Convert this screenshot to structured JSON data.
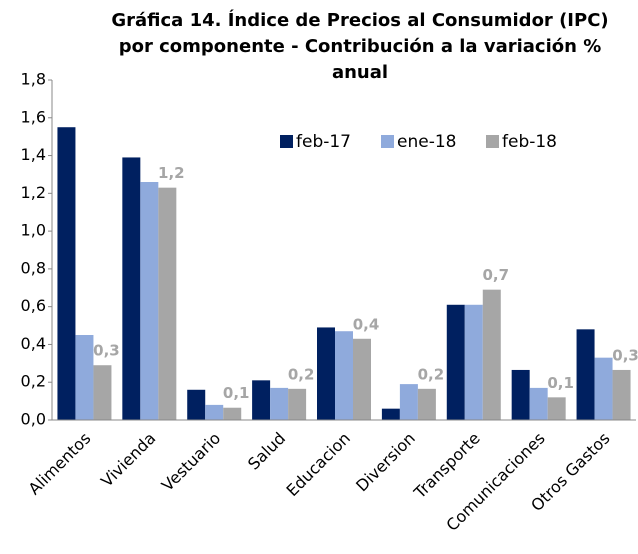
{
  "chart_data": {
    "type": "bar",
    "title": "Gráfica 14. Índice de Precios al Consumidor (IPC) por componente - Contribución a la variación % anual",
    "categories": [
      "Alimentos",
      "Vivienda",
      "Vestuario",
      "Salud",
      "Educacion",
      "Diversion",
      "Transporte",
      "Comunicaciones",
      "Otros Gastos"
    ],
    "series": [
      {
        "name": "feb-17",
        "color": "#002060",
        "values": [
          1.55,
          1.39,
          0.16,
          0.21,
          0.49,
          0.06,
          0.61,
          0.265,
          0.48
        ]
      },
      {
        "name": "ene-18",
        "color": "#8faadc",
        "values": [
          0.45,
          1.26,
          0.08,
          0.17,
          0.47,
          0.19,
          0.61,
          0.17,
          0.33
        ]
      },
      {
        "name": "feb-18",
        "color": "#a6a6a6",
        "values": [
          0.29,
          1.23,
          0.065,
          0.165,
          0.43,
          0.165,
          0.69,
          0.12,
          0.265
        ],
        "value_labels": [
          "0,3",
          "1,2",
          "0,1",
          "0,2",
          "0,4",
          "0,2",
          "0,7",
          "0,1",
          "0,3"
        ]
      }
    ],
    "ylim": [
      0,
      1.8
    ],
    "yticks": [
      {
        "value": 0,
        "label": "0,0"
      },
      {
        "value": 0.2,
        "label": "0,2"
      },
      {
        "value": 0.4,
        "label": "0,4"
      },
      {
        "value": 0.6,
        "label": "0,6"
      },
      {
        "value": 0.8,
        "label": "0,8"
      },
      {
        "value": 1.0,
        "label": "1,0"
      },
      {
        "value": 1.2,
        "label": "1,2"
      },
      {
        "value": 1.4,
        "label": "1,4"
      },
      {
        "value": 1.6,
        "label": "1,6"
      },
      {
        "value": 1.8,
        "label": "1,8"
      }
    ],
    "legend": "top"
  }
}
